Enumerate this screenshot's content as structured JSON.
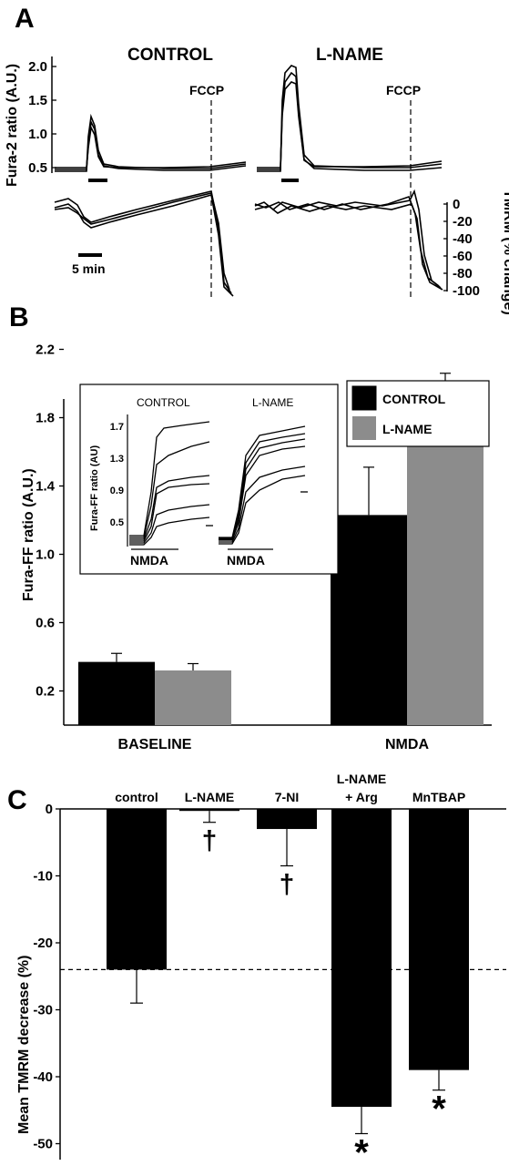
{
  "panel_a": {
    "letter": "A",
    "control_title": "CONTROL",
    "lname_title": "L-NAME",
    "fccp_label": "FCCP",
    "fura_axis_label": "Fura-2 ratio (A.U.)",
    "fura_ticks": [
      "2.0",
      "1.5",
      "1.0",
      "0.5"
    ],
    "tmrm_axis_label": "TMRM (% change)",
    "tmrm_ticks": [
      "0",
      "-20",
      "-40",
      "-60",
      "-80",
      "-100"
    ],
    "scale_bar_label": "5 min"
  },
  "panel_b": {
    "letter": "B",
    "ylabel": "Fura-FF ratio (A.U.)",
    "yticks": [
      "2.2",
      "1.8",
      "1.4",
      "1.0",
      "0.6",
      "0.2"
    ],
    "legend": [
      "CONTROL",
      "L-NAME"
    ],
    "inset": {
      "control_label": "CONTROL",
      "lname_label": "L-NAME",
      "ylabel": "Fura-FF ratio (AU)",
      "yticks": [
        "1.7",
        "1.3",
        "0.9",
        "0.5"
      ],
      "stim_label": "NMDA"
    }
  },
  "panel_c": {
    "letter": "C",
    "ylabel": "Mean TMRM decrease (%)",
    "yticks": [
      "0",
      "-10",
      "-20",
      "-30",
      "-40",
      "-50"
    ],
    "cat_labels": [
      [
        "control"
      ],
      [
        "L-NAME"
      ],
      [
        "7-NI"
      ],
      [
        "L-NAME",
        "+ Arg"
      ],
      [
        "MnTBAP"
      ]
    ]
  },
  "chart_data": [
    {
      "type": "bar",
      "categories": [
        "BASELINE",
        "NMDA"
      ],
      "series": [
        {
          "name": "CONTROL",
          "values": [
            0.37,
            1.23
          ],
          "errors": [
            0.05,
            0.28
          ],
          "color": "#000000"
        },
        {
          "name": "L-NAME",
          "values": [
            0.32,
            1.73
          ],
          "errors": [
            0.04,
            0.33
          ],
          "color": "#8c8c8c"
        }
      ],
      "xlabel": "",
      "ylabel": "Fura-FF ratio (A.U.)",
      "ylim": [
        0.0,
        2.4
      ],
      "legend_position": "top-right",
      "grid": false
    },
    {
      "type": "bar",
      "categories": [
        "control",
        "L-NAME",
        "7-NI",
        "L-NAME + Arg",
        "MnTBAP"
      ],
      "values": [
        -24,
        -0.3,
        -3,
        -44.5,
        -39
      ],
      "errors": [
        5,
        1.7,
        5.5,
        4,
        3
      ],
      "annotations": [
        "",
        "†",
        "†",
        "*",
        "*"
      ],
      "reference_line": -24,
      "xlabel": "",
      "ylabel": "Mean TMRM decrease (%)",
      "ylim": [
        -51,
        0
      ],
      "grid": false
    }
  ]
}
